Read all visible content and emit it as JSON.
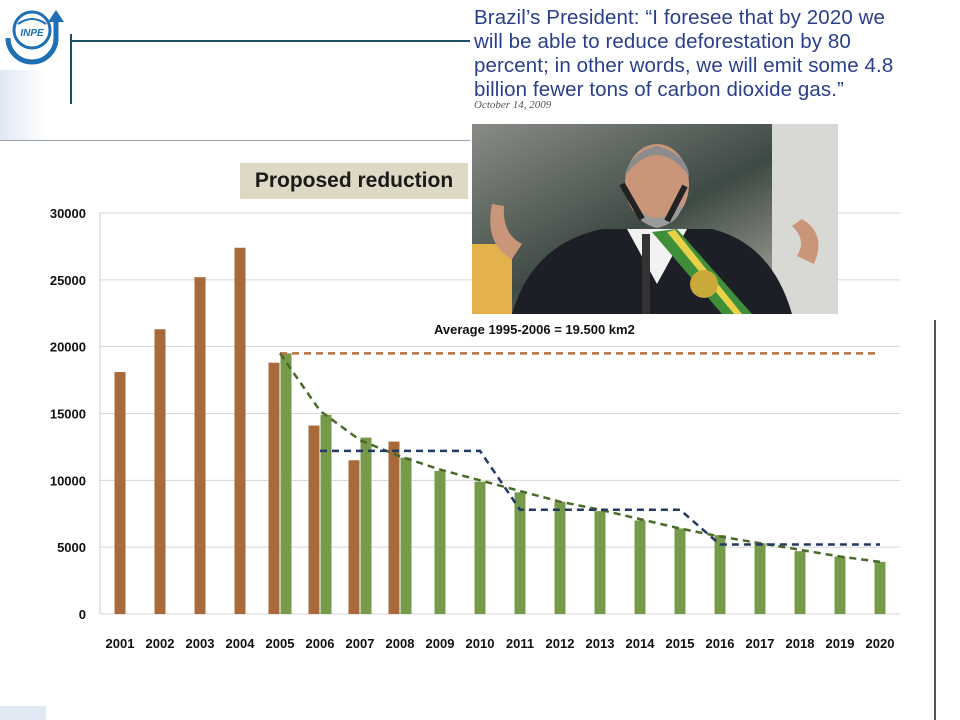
{
  "logo": {
    "text": "INPE",
    "icon": "inpe-logo-icon",
    "colors": {
      "blue": "#1f6fb5"
    }
  },
  "quote": {
    "lines": [
      "Brazil’s President: “I foresee that by 2020 we",
      "will be able to reduce deforestation by 80",
      "percent; in other words, we will emit some 4.8",
      "billion fewer tons of carbon dioxide gas.”"
    ],
    "date": "October 14, 2009",
    "color": "#2a3f8c"
  },
  "photo": {
    "icon": "president-photo-icon"
  },
  "chart_data": {
    "type": "bar",
    "title": "Proposed reduction",
    "categories": [
      "2001",
      "2002",
      "2003",
      "2004",
      "2005",
      "2006",
      "2007",
      "2008",
      "2009",
      "2010",
      "2011",
      "2012",
      "2013",
      "2014",
      "2015",
      "2016",
      "2017",
      "2018",
      "2019",
      "2020"
    ],
    "series": [
      {
        "values": [
          18100,
          21300,
          25200,
          27400,
          18800,
          14100,
          11500,
          12900,
          null,
          null,
          null,
          null,
          null,
          null,
          null,
          null,
          null,
          null,
          null,
          null
        ],
        "color": "#a86a3a"
      },
      {
        "values": [
          null,
          null,
          null,
          null,
          19500,
          14900,
          13200,
          11700,
          10700,
          9900,
          9100,
          8400,
          7700,
          7000,
          6400,
          5900,
          5300,
          4700,
          4300,
          3900
        ],
        "color": "#77994a"
      }
    ],
    "lines": [
      {
        "type": "horizontal",
        "value": 19500,
        "from": "2005",
        "to": "2020",
        "color": "#b5713f",
        "dashed": true
      },
      {
        "type": "trend",
        "values": [
          19500,
          15200,
          13000,
          11800,
          10800,
          10000,
          9200,
          8400,
          7800,
          7100,
          6400,
          5800,
          5300,
          4800,
          4300,
          3900
        ],
        "from": "2005",
        "color": "#4b6a2a",
        "dashed": true
      },
      {
        "type": "step",
        "segments": [
          {
            "from": "2006",
            "to": "2010",
            "value": 12200
          },
          {
            "from": "2011",
            "to": "2015",
            "value": 7800
          },
          {
            "from": "2016",
            "to": "2020",
            "value": 5200
          }
        ],
        "color": "#233a64",
        "dashed": true
      }
    ],
    "annotation": "Average 1995-2006 = 19.500 km2",
    "yticks": [
      0,
      5000,
      10000,
      15000,
      20000,
      25000,
      30000
    ],
    "ylim": [
      0,
      30000
    ],
    "grid": true
  }
}
